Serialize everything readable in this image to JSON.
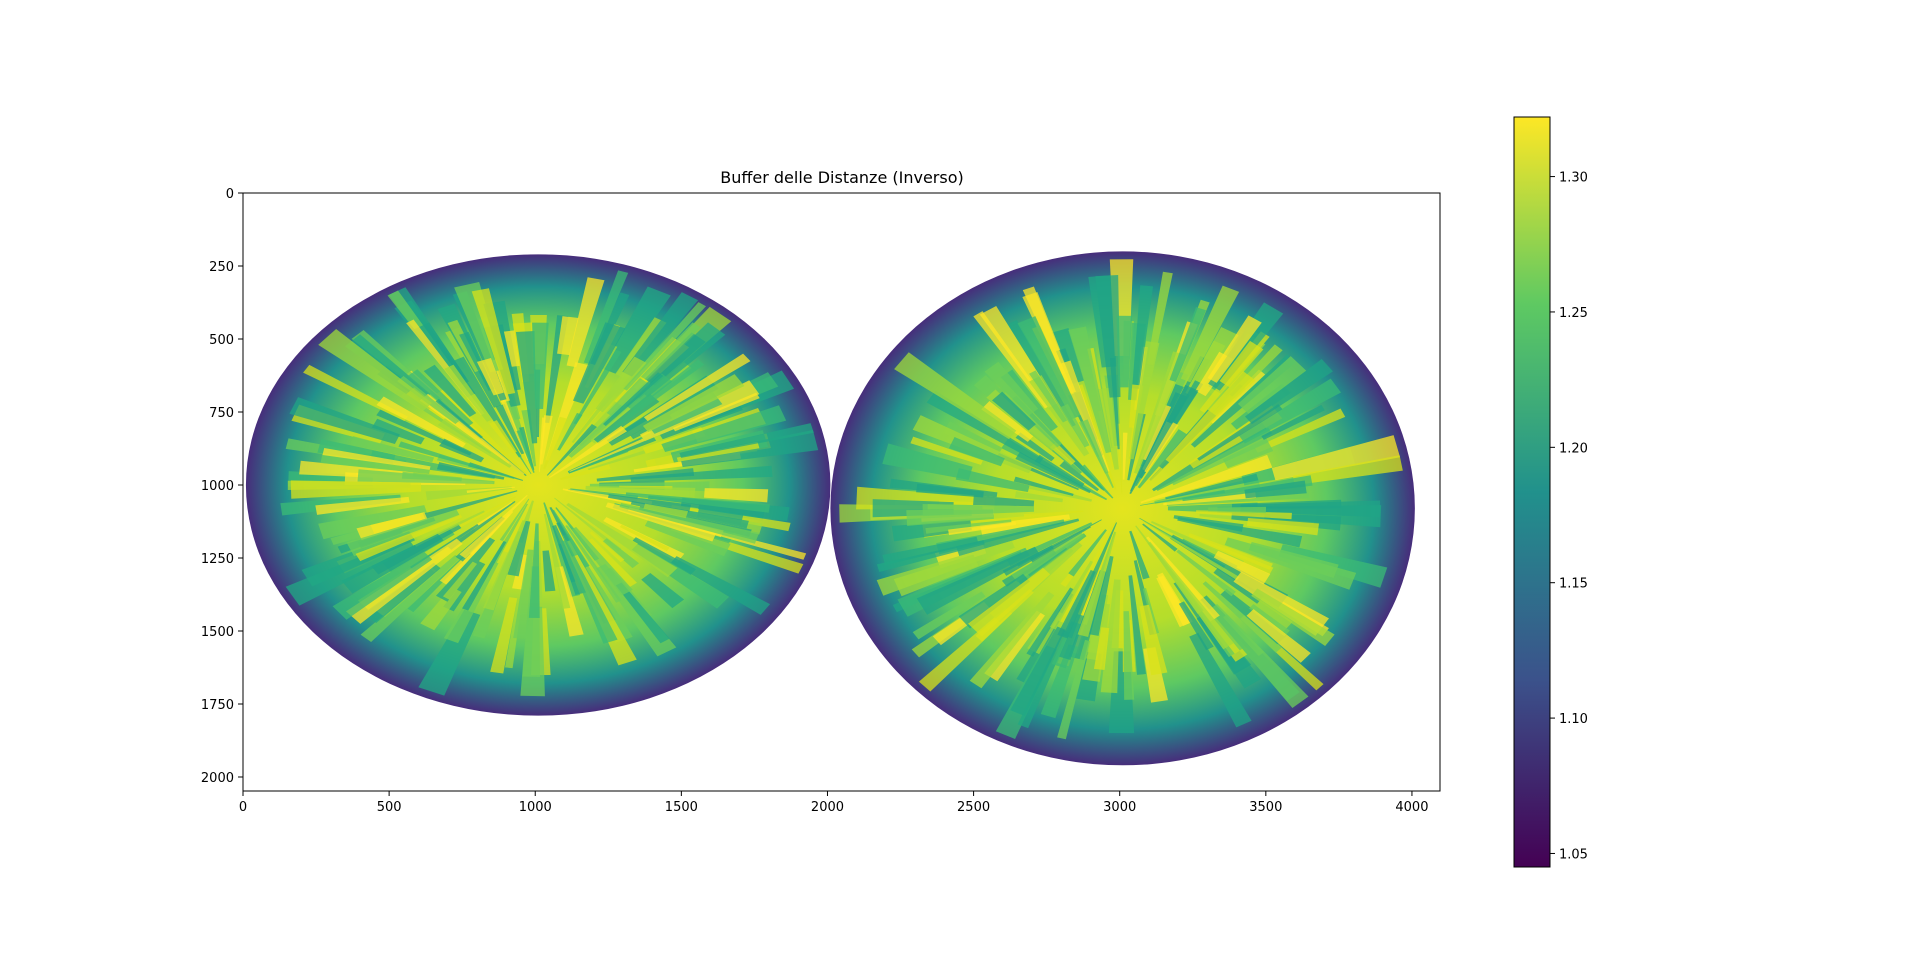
{
  "chart_data": {
    "type": "heatmap",
    "title": "Buffer delle Distanze (Inverso)",
    "xlabel": "",
    "ylabel": "",
    "xlim": [
      0,
      4096
    ],
    "ylim": [
      2048,
      0
    ],
    "x_ticks": [
      0,
      500,
      1000,
      1500,
      2000,
      2500,
      3000,
      3500,
      4000
    ],
    "y_ticks": [
      0,
      250,
      500,
      750,
      1000,
      1250,
      1500,
      1750,
      2000
    ],
    "grid": false,
    "colormap": "viridis",
    "colorbar": {
      "range": [
        1.045,
        1.322
      ],
      "ticks": [
        1.05,
        1.1,
        1.15,
        1.2,
        1.25,
        1.3
      ],
      "tick_labels": [
        "1.05",
        "1.10",
        "1.15",
        "1.20",
        "1.25",
        "1.30"
      ]
    },
    "regions": [
      {
        "name": "left-blob",
        "cx": 1010,
        "cy": 1000,
        "rx": 1000,
        "ry": 790
      },
      {
        "name": "right-blob",
        "cx": 3010,
        "cy": 1080,
        "rx": 1000,
        "ry": 880
      }
    ],
    "background_color": "#ffffff",
    "colormap_stops": [
      "#440154",
      "#3b528b",
      "#21918c",
      "#5ec962",
      "#fde725"
    ]
  }
}
